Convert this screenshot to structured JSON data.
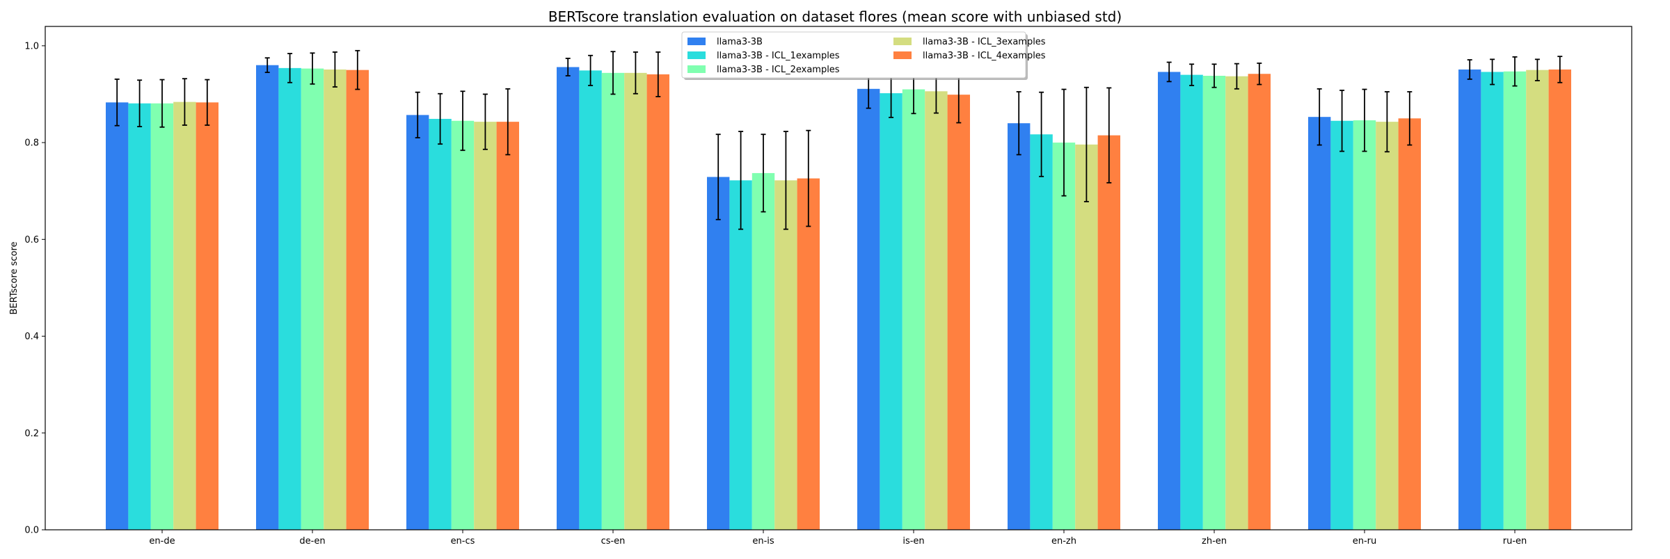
{
  "chart_data": {
    "type": "bar",
    "title": "BERTscore translation evaluation on dataset flores (mean score with unbiased std)",
    "xlabel": "",
    "ylabel": "BERTscore score",
    "ylim": [
      0,
      1.04
    ],
    "yticks": [
      "0.0",
      "0.2",
      "0.4",
      "0.6",
      "0.8",
      "1.0"
    ],
    "grid": false,
    "legend_position": "top-center",
    "categories": [
      "en-de",
      "de-en",
      "en-cs",
      "cs-en",
      "en-is",
      "is-en",
      "en-zh",
      "zh-en",
      "en-ru",
      "ru-en"
    ],
    "series": [
      {
        "name": "llama3-3B",
        "color": "#3080f0",
        "values": [
          0.883,
          0.96,
          0.857,
          0.956,
          0.729,
          0.911,
          0.84,
          0.946,
          0.853,
          0.951
        ],
        "std": [
          0.048,
          0.015,
          0.047,
          0.018,
          0.088,
          0.04,
          0.065,
          0.02,
          0.058,
          0.02
        ]
      },
      {
        "name": "llama3-3B - ICL_1examples",
        "color": "#2adddd",
        "values": [
          0.881,
          0.954,
          0.849,
          0.949,
          0.722,
          0.902,
          0.817,
          0.94,
          0.845,
          0.946
        ],
        "std": [
          0.048,
          0.03,
          0.052,
          0.031,
          0.101,
          0.05,
          0.087,
          0.022,
          0.063,
          0.026
        ]
      },
      {
        "name": "llama3-3B - ICL_2examples",
        "color": "#80ffb0",
        "values": [
          0.881,
          0.953,
          0.845,
          0.944,
          0.737,
          0.91,
          0.8,
          0.938,
          0.846,
          0.947
        ],
        "std": [
          0.049,
          0.032,
          0.061,
          0.044,
          0.08,
          0.05,
          0.11,
          0.024,
          0.064,
          0.03
        ]
      },
      {
        "name": "llama3-3B - ICL_3examples",
        "color": "#d4dd80",
        "values": [
          0.884,
          0.951,
          0.843,
          0.944,
          0.722,
          0.906,
          0.796,
          0.937,
          0.843,
          0.95
        ],
        "std": [
          0.048,
          0.036,
          0.057,
          0.043,
          0.101,
          0.045,
          0.118,
          0.026,
          0.062,
          0.022
        ]
      },
      {
        "name": "llama3-3B - ICL_4examples",
        "color": "#ff8040",
        "values": [
          0.883,
          0.95,
          0.843,
          0.941,
          0.726,
          0.899,
          0.815,
          0.942,
          0.85,
          0.951
        ],
        "std": [
          0.047,
          0.04,
          0.068,
          0.046,
          0.099,
          0.058,
          0.098,
          0.022,
          0.055,
          0.027
        ]
      }
    ]
  }
}
